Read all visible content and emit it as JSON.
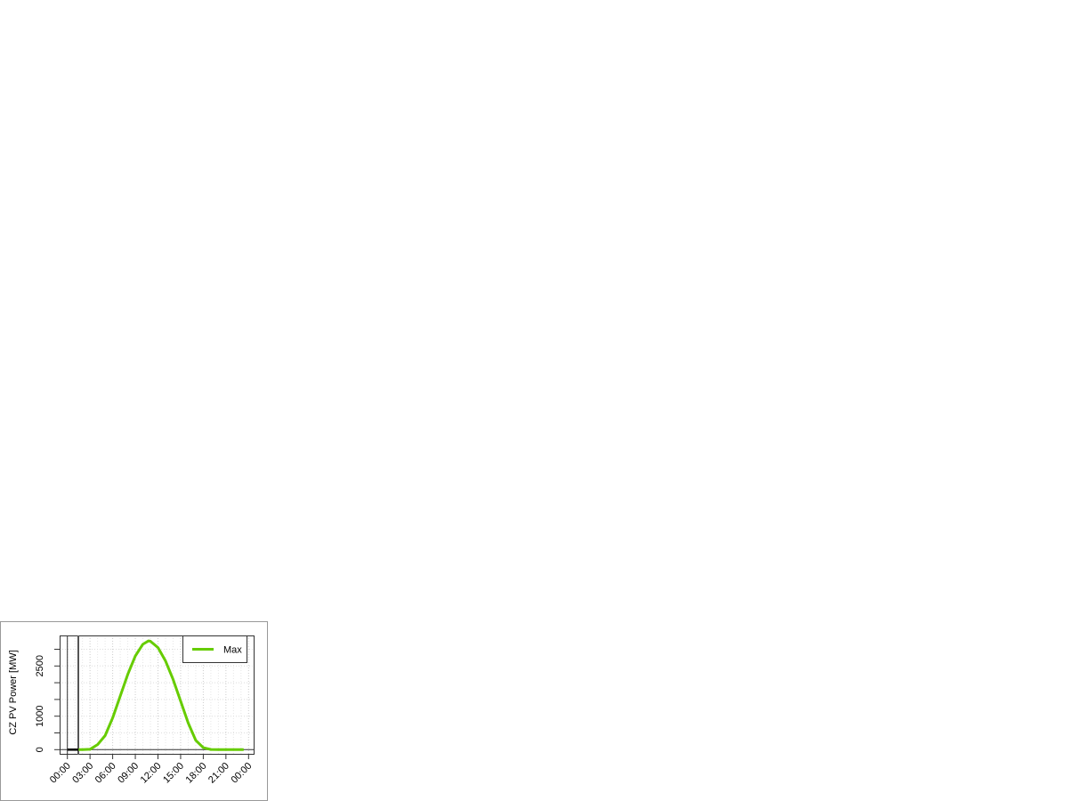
{
  "chart_data": {
    "type": "line",
    "title": "",
    "xlabel": "",
    "ylabel": "CZ PV Power [MW]",
    "x_tick_labels": [
      "00:00",
      "03:00",
      "06:00",
      "09:00",
      "12:00",
      "15:00",
      "18:00",
      "21:00",
      "00:00"
    ],
    "y_tick_labels": [
      "0",
      "1000",
      "2500"
    ],
    "y_ticks": [
      0,
      500,
      1000,
      1500,
      2000,
      2500,
      3000
    ],
    "xlim_hours": [
      0,
      24
    ],
    "ylim": [
      0,
      3300
    ],
    "grid": true,
    "legend_position": "top-right",
    "series": [
      {
        "name": "Max",
        "color": "#66cc00",
        "x_hours": [
          1.5,
          2,
          3,
          4,
          5,
          6,
          7,
          8,
          9,
          10,
          10.75,
          11,
          12,
          13,
          14,
          15,
          16,
          17,
          18,
          19,
          20,
          21,
          22,
          23,
          23.35
        ],
        "values": [
          0,
          0,
          10,
          150,
          420,
          950,
          1600,
          2250,
          2800,
          3150,
          3250,
          3240,
          3050,
          2650,
          2100,
          1450,
          800,
          280,
          60,
          5,
          0,
          0,
          0,
          0,
          0
        ]
      }
    ]
  }
}
